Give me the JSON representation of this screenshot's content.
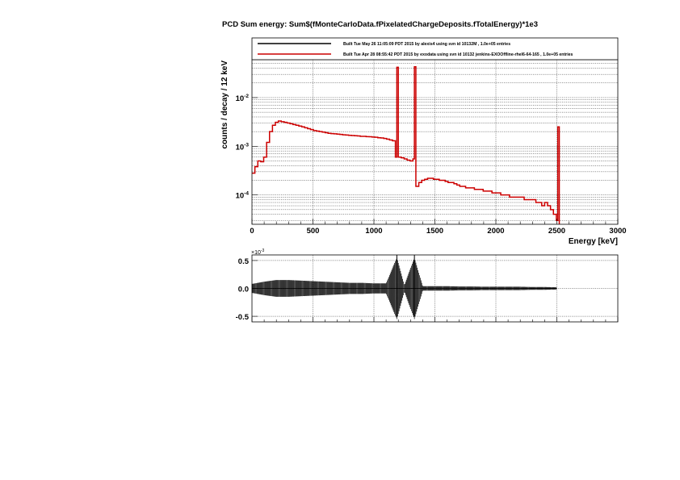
{
  "title": "PCD Sum energy: Sum$(fMonteCarloData.fPixelatedChargeDeposits.fTotalEnergy)*1e3",
  "chart_data": [
    {
      "type": "line",
      "subtype": "step-histogram",
      "ylabel": "counts / decay / 12 keV",
      "xlabel": "Energy [keV]",
      "xlim": [
        0,
        3000
      ],
      "ylim": [
        2.5e-05,
        0.06
      ],
      "yscale": "log",
      "grid": true,
      "legend_position": "top",
      "x_ticks": [
        "0",
        "500",
        "1000",
        "1500",
        "2000",
        "2500",
        "3000"
      ],
      "y_ticks": [
        {
          "base": "10",
          "exp": "-2",
          "value": 0.01
        },
        {
          "base": "10",
          "exp": "-3",
          "value": 0.001
        },
        {
          "base": "10",
          "exp": "-4",
          "value": 0.0001
        }
      ],
      "legend": [
        {
          "label": "Built Tue May 26 11:05:09 PDT 2015 by alexis4 using svn id 10132M , 1.0e+05 entries",
          "color": "#000000"
        },
        {
          "label": "Built Tue Apr 28 08:55:42 PDT 2015 by exodata using svn id 10132 jenkins-EXOOffline-rhel6-64-165 , 1.0e+05 entries",
          "color": "#cc0000"
        }
      ],
      "x": [
        0,
        24,
        48,
        72,
        96,
        120,
        144,
        168,
        192,
        216,
        240,
        264,
        288,
        312,
        336,
        360,
        384,
        408,
        432,
        456,
        480,
        504,
        528,
        552,
        576,
        600,
        624,
        648,
        672,
        696,
        720,
        744,
        768,
        792,
        816,
        840,
        864,
        888,
        912,
        936,
        960,
        984,
        1008,
        1032,
        1056,
        1080,
        1104,
        1128,
        1152,
        1176,
        1188,
        1200,
        1224,
        1248,
        1272,
        1296,
        1320,
        1332,
        1344,
        1368,
        1392,
        1416,
        1440,
        1464,
        1488,
        1512,
        1536,
        1560,
        1584,
        1608,
        1632,
        1656,
        1680,
        1704,
        1728,
        1752,
        1776,
        1800,
        1824,
        1848,
        1872,
        1896,
        1920,
        1944,
        1968,
        1992,
        2016,
        2040,
        2064,
        2088,
        2112,
        2136,
        2160,
        2184,
        2208,
        2232,
        2256,
        2280,
        2304,
        2328,
        2352,
        2376,
        2400,
        2424,
        2448,
        2472,
        2496,
        2508
      ],
      "series": [
        {
          "name": "Built Tue Apr 28 08:55:42 PDT 2015 by exodata using svn id 10132 jenkins-EXOOffline-rhel6-64-165 , 1.0e+05 entries",
          "color": "#cc0000",
          "values": [
            0.00028,
            0.00038,
            0.0005,
            0.00048,
            0.0006,
            0.0012,
            0.002,
            0.0027,
            0.0031,
            0.0033,
            0.0032,
            0.0031,
            0.003,
            0.0029,
            0.0028,
            0.0027,
            0.0026,
            0.0025,
            0.0024,
            0.0023,
            0.0022,
            0.0021,
            0.00205,
            0.002,
            0.00195,
            0.0019,
            0.00185,
            0.00182,
            0.0018,
            0.00178,
            0.00175,
            0.00172,
            0.0017,
            0.00168,
            0.00166,
            0.00165,
            0.00163,
            0.0016,
            0.0016,
            0.00158,
            0.00157,
            0.00155,
            0.00153,
            0.0015,
            0.00148,
            0.00145,
            0.0014,
            0.00135,
            0.0013,
            0.0006,
            0.042,
            0.0006,
            0.00058,
            0.00055,
            0.00052,
            0.0005,
            0.00055,
            0.043,
            0.00015,
            0.00018,
            0.0002,
            0.00021,
            0.00022,
            0.00022,
            0.00021,
            0.00021,
            0.0002,
            0.0002,
            0.00019,
            0.00018,
            0.00018,
            0.00017,
            0.00016,
            0.00015,
            0.00015,
            0.00014,
            0.00014,
            0.00014,
            0.00013,
            0.00013,
            0.00013,
            0.00012,
            0.00012,
            0.00012,
            0.00011,
            0.00011,
            0.00011,
            0.0001,
            0.0001,
            0.0001,
            9e-05,
            9e-05,
            9e-05,
            9e-05,
            9e-05,
            8e-05,
            8e-05,
            8e-05,
            8e-05,
            7e-05,
            7e-05,
            6e-05,
            7e-05,
            6e-05,
            5e-05,
            4e-05,
            3e-05,
            0.0025
          ]
        }
      ]
    },
    {
      "type": "line",
      "subtype": "residual",
      "xlim": [
        0,
        3000
      ],
      "ylim": [
        -0.6,
        0.6
      ],
      "multiplier": "×10",
      "multiplier_exp": "-3",
      "grid": true,
      "y_ticks": [
        {
          "label": "0.5",
          "value": 0.5
        },
        {
          "label": "0.0",
          "value": 0.0
        },
        {
          "label": "-0.5",
          "value": -0.5
        }
      ],
      "x": [
        0,
        100,
        200,
        300,
        400,
        500,
        600,
        700,
        800,
        900,
        1000,
        1100,
        1188,
        1250,
        1332,
        1400,
        1500,
        1600,
        1700,
        1800,
        1900,
        2000,
        2100,
        2200,
        2300,
        2400,
        2496
      ],
      "series": [
        {
          "envelope": [
            0.08,
            0.12,
            0.15,
            0.15,
            0.14,
            0.13,
            0.12,
            0.11,
            0.1,
            0.1,
            0.09,
            0.09,
            0.55,
            0.06,
            0.55,
            0.04,
            0.04,
            0.04,
            0.035,
            0.035,
            0.03,
            0.03,
            0.03,
            0.03,
            0.025,
            0.025,
            0.02
          ],
          "color": "#000000"
        }
      ]
    }
  ]
}
